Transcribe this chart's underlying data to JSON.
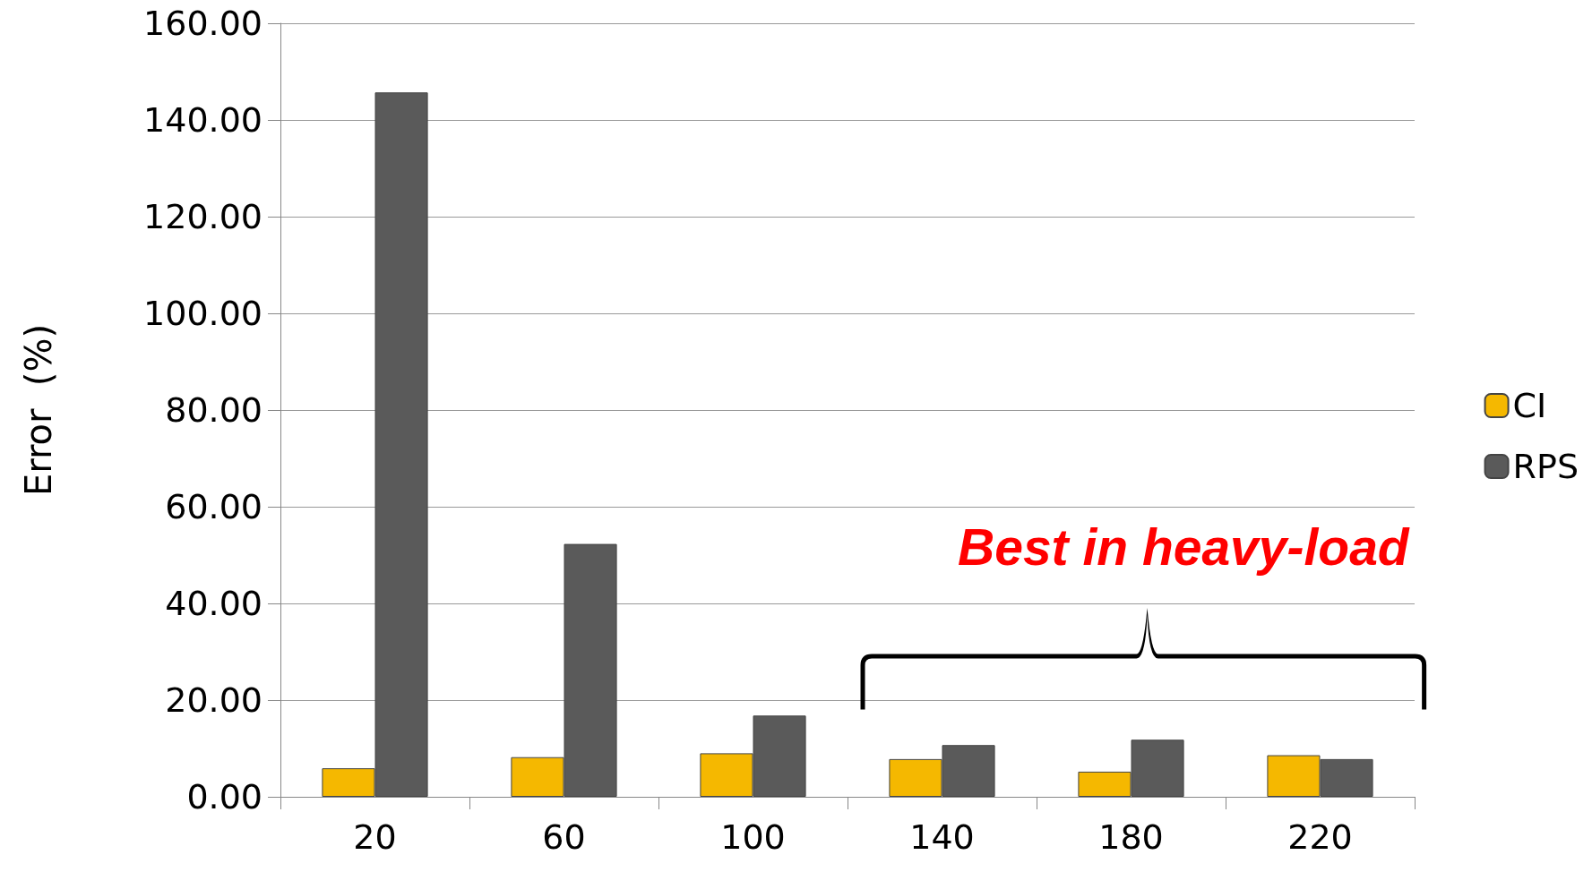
{
  "chart_data": {
    "type": "bar",
    "ylabel": "Error  (%)",
    "categories": [
      "20",
      "60",
      "100",
      "140",
      "180",
      "220"
    ],
    "series": [
      {
        "name": "CI",
        "color": "#f5b800",
        "values": [
          5.9,
          8.2,
          9.0,
          7.8,
          5.2,
          8.6
        ]
      },
      {
        "name": "RPS",
        "color": "#5a5a5a",
        "values": [
          145.7,
          52.3,
          16.8,
          10.7,
          11.8,
          7.8
        ]
      }
    ],
    "ylim": [
      0,
      160
    ],
    "yticks": [
      {
        "value": 0,
        "label": "0.00"
      },
      {
        "value": 20,
        "label": "20.00"
      },
      {
        "value": 40,
        "label": "40.00"
      },
      {
        "value": 60,
        "label": "60.00"
      },
      {
        "value": 80,
        "label": "80.00"
      },
      {
        "value": 100,
        "label": "100.00"
      },
      {
        "value": 120,
        "label": "120.00"
      },
      {
        "value": 140,
        "label": "140.00"
      },
      {
        "value": 160,
        "label": "160.00"
      }
    ],
    "grid": "y",
    "legend": "right",
    "annotations": [
      "Best in heavy-load"
    ]
  }
}
